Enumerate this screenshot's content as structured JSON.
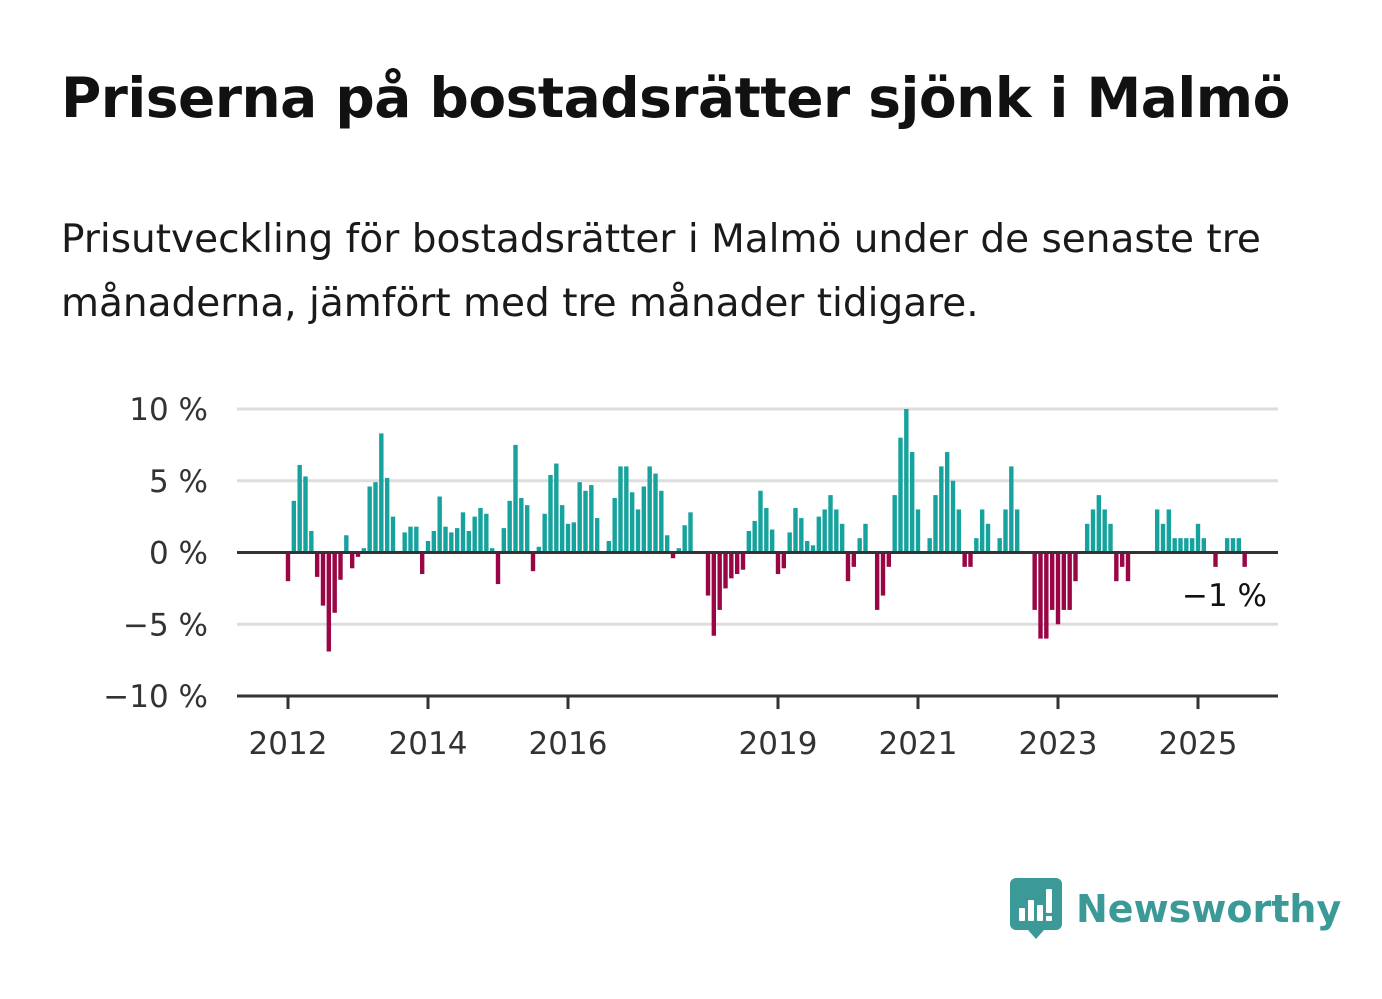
{
  "header": {
    "title": "Priserna på bostadsrätter sjönk i Malmö",
    "subtitle": "Prisutveckling för bostadsrätter i Malmö under de senaste tre månaderna, jämfört med tre månader tidigare."
  },
  "brand": {
    "name": "Newsworthy",
    "icon": "newsworthy-logo-icon",
    "color": "#3b9a97"
  },
  "chart_data": {
    "type": "bar",
    "title": "",
    "xlabel": "",
    "ylabel": "",
    "ylim": [
      -10,
      10
    ],
    "yticks": [
      {
        "value": 10,
        "label": "10 %"
      },
      {
        "value": 5,
        "label": "5 %"
      },
      {
        "value": 0,
        "label": "0 %"
      },
      {
        "value": -5,
        "label": "−5 %"
      },
      {
        "value": -10,
        "label": "−10 %"
      }
    ],
    "xticks": [
      {
        "year": 2012,
        "label": "2012"
      },
      {
        "year": 2014,
        "label": "2014"
      },
      {
        "year": 2016,
        "label": "2016"
      },
      {
        "year": 2019,
        "label": "2019"
      },
      {
        "year": 2021,
        "label": "2021"
      },
      {
        "year": 2023,
        "label": "2023"
      },
      {
        "year": 2025,
        "label": "2025"
      }
    ],
    "grid": true,
    "colors": {
      "positive": "#16a39e",
      "negative": "#990545",
      "grid": "#dddddd",
      "axis": "#333333"
    },
    "start": "2012-01",
    "frequency": "monthly",
    "values": [
      -2,
      3.6,
      6.1,
      5.3,
      1.5,
      -1.7,
      -3.7,
      -6.9,
      -4.2,
      -1.9,
      1.2,
      -1.1,
      -0.3,
      0.3,
      4.6,
      4.9,
      8.3,
      5.2,
      2.5,
      0,
      1.4,
      1.8,
      1.8,
      -1.5,
      0.8,
      1.5,
      3.9,
      1.8,
      1.4,
      1.7,
      2.8,
      1.5,
      2.5,
      3.1,
      2.7,
      0.3,
      -2.2,
      1.7,
      3.6,
      7.5,
      3.8,
      3.3,
      -1.3,
      0.4,
      2.7,
      5.4,
      6.2,
      3.3,
      2,
      2.1,
      4.9,
      4.3,
      4.7,
      2.4,
      0,
      0.8,
      3.8,
      6,
      6,
      4.2,
      3,
      4.6,
      6,
      5.5,
      4.3,
      1.2,
      -0.4,
      0.3,
      1.9,
      2.8,
      0,
      0,
      -3,
      -5.8,
      -4,
      -2.5,
      -1.8,
      -1.5,
      -1.2,
      1.5,
      2.2,
      4.3,
      3.1,
      1.6,
      -1.5,
      -1.1,
      1.4,
      3.1,
      2.4,
      0.8,
      0.5,
      2.5,
      3,
      4,
      3,
      2,
      -2,
      -1,
      1,
      2,
      0,
      -4,
      -3,
      -1,
      4,
      8,
      10,
      7,
      3,
      0,
      1,
      4,
      6,
      7,
      5,
      3,
      -1,
      -1,
      1,
      3,
      2,
      0,
      1,
      3,
      6,
      3,
      0,
      0,
      -4,
      -6,
      -6,
      -4,
      -5,
      -4,
      -4,
      -2,
      0,
      2,
      3,
      4,
      3,
      2,
      -2,
      -1,
      -2,
      0,
      0,
      0,
      0,
      3,
      2,
      3,
      1,
      1,
      1,
      1,
      2,
      1,
      0,
      -1,
      0,
      1,
      1,
      1,
      -1
    ],
    "last_value_label": "−1 %"
  }
}
